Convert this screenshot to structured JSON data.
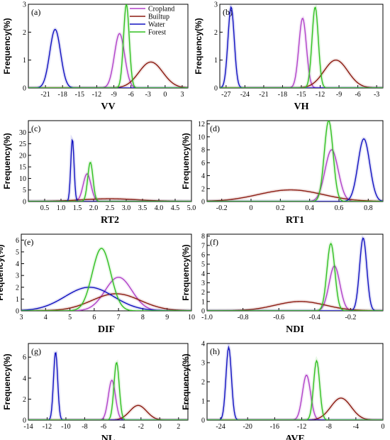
{
  "colors": {
    "Cropland": "#b040c8",
    "Builtup": "#8b1a10",
    "Water": "#1010c0",
    "Forest": "#30c020"
  },
  "legend": [
    "Cropland",
    "Builtup",
    "Water",
    "Forest"
  ],
  "chart_data": [
    {
      "type": "line",
      "panel": "(a)",
      "xlabel": "VV",
      "ylabel": "Frequency(%)",
      "xlim": [
        -24,
        4
      ],
      "ylim": [
        0,
        3
      ],
      "xticks": [
        -21,
        -18,
        -15,
        -12,
        -9,
        -6,
        -3,
        0,
        3
      ],
      "yticks": [
        0,
        1,
        2,
        3
      ],
      "xtick_labels": [
        "-21",
        "-18",
        "-15",
        "-12",
        "-9",
        "-6",
        "-3",
        "0",
        "3"
      ],
      "ytick_labels": [
        "0",
        "1",
        "2",
        "3"
      ],
      "legend_position": "top-right",
      "series": [
        {
          "name": "Cropland",
          "peak": -8.0,
          "height": 1.95,
          "spread": 0.9
        },
        {
          "name": "Builtup",
          "peak": -2.5,
          "height": 0.93,
          "spread": 2.1
        },
        {
          "name": "Water",
          "peak": -19.3,
          "height": 2.1,
          "spread": 0.95
        },
        {
          "name": "Forest",
          "peak": -6.8,
          "height": 3.0,
          "spread": 0.5
        }
      ]
    },
    {
      "type": "line",
      "panel": "(b)",
      "xlabel": "VH",
      "ylabel": "Frequency(%)",
      "xlim": [
        -28,
        -2
      ],
      "ylim": [
        0,
        3
      ],
      "xticks": [
        -27,
        -24,
        -21,
        -18,
        -15,
        -12,
        -9,
        -6,
        -3
      ],
      "yticks": [
        0,
        1,
        2,
        3
      ],
      "xtick_labels": [
        "-27",
        "-24",
        "-21",
        "-18",
        "-15",
        "-12",
        "-9",
        "-6",
        "-3"
      ],
      "ytick_labels": [
        "0",
        "1",
        "2",
        "3"
      ],
      "series": [
        {
          "name": "Cropland",
          "peak": -14.8,
          "height": 2.5,
          "spread": 0.6
        },
        {
          "name": "Builtup",
          "peak": -9.5,
          "height": 1.0,
          "spread": 1.9
        },
        {
          "name": "Water",
          "peak": -26.2,
          "height": 2.9,
          "spread": 0.5
        },
        {
          "name": "Forest",
          "peak": -12.8,
          "height": 2.9,
          "spread": 0.5
        }
      ]
    },
    {
      "type": "line",
      "panel": "(c)",
      "xlabel": "RT2",
      "ylabel": "Frequency(%)",
      "xlim": [
        0,
        5
      ],
      "ylim": [
        0,
        35
      ],
      "xticks": [
        0.5,
        1.0,
        1.5,
        2.0,
        2.5,
        3.0,
        3.5,
        4.0,
        4.5,
        5.0
      ],
      "yticks": [
        0,
        5,
        10,
        15,
        20,
        25,
        30
      ],
      "xtick_labels": [
        "0.5",
        "1.0",
        "1.5",
        "2.0",
        "2.5",
        "3.0",
        "3.5",
        "4.0",
        "4.5",
        "5.0"
      ],
      "ytick_labels": [
        "0",
        "5",
        "10",
        "15",
        "20",
        "25",
        "30"
      ],
      "series": [
        {
          "name": "Cropland",
          "peak": 1.8,
          "height": 12.0,
          "spread": 0.12
        },
        {
          "name": "Builtup",
          "peak": 2.5,
          "height": 1.2,
          "spread": 0.9
        },
        {
          "name": "Water",
          "peak": 1.35,
          "height": 27.0,
          "spread": 0.05
        },
        {
          "name": "Forest",
          "peak": 1.9,
          "height": 17.0,
          "spread": 0.08
        }
      ]
    },
    {
      "type": "line",
      "panel": "(d)",
      "xlabel": "RT1",
      "ylabel": "Frequency(%)",
      "xlim": [
        -0.3,
        0.9
      ],
      "ylim": [
        0,
        12.5
      ],
      "xticks": [
        -0.2,
        0,
        0.2,
        0.4,
        0.6,
        0.8
      ],
      "yticks": [
        0,
        2,
        4,
        6,
        8,
        10,
        12
      ],
      "xtick_labels": [
        "-0.2",
        "0",
        "0.2",
        "0.4",
        "0.6",
        "0.8"
      ],
      "ytick_labels": [
        "0",
        "2",
        "4",
        "6",
        "8",
        "10",
        "12"
      ],
      "series": [
        {
          "name": "Cropland",
          "peak": 0.55,
          "height": 8.0,
          "spread": 0.045
        },
        {
          "name": "Builtup",
          "peak": 0.27,
          "height": 1.8,
          "spread": 0.22
        },
        {
          "name": "Water",
          "peak": 0.77,
          "height": 9.7,
          "spread": 0.04
        },
        {
          "name": "Forest",
          "peak": 0.53,
          "height": 12.5,
          "spread": 0.03
        }
      ]
    },
    {
      "type": "line",
      "panel": "(e)",
      "xlabel": "DIF",
      "ylabel": "Frequency(%)",
      "xlim": [
        3,
        10
      ],
      "ylim": [
        0,
        6.5
      ],
      "xticks": [
        3,
        4,
        5,
        6,
        7,
        8,
        9,
        10
      ],
      "yticks": [
        0,
        1,
        2,
        3,
        4,
        5,
        6
      ],
      "xtick_labels": [
        "3",
        "4",
        "5",
        "6",
        "7",
        "8",
        "9",
        "10"
      ],
      "ytick_labels": [
        "0",
        "1",
        "2",
        "3",
        "4",
        "5",
        "6"
      ],
      "series": [
        {
          "name": "Cropland",
          "peak": 7.0,
          "height": 2.85,
          "spread": 0.55
        },
        {
          "name": "Builtup",
          "peak": 6.9,
          "height": 1.45,
          "spread": 1.0
        },
        {
          "name": "Water",
          "peak": 5.8,
          "height": 2.0,
          "spread": 1.0
        },
        {
          "name": "Forest",
          "peak": 6.3,
          "height": 5.3,
          "spread": 0.38
        }
      ]
    },
    {
      "type": "line",
      "panel": "(f)",
      "xlabel": "NDI",
      "ylabel": "Frequency(%)",
      "xlim": [
        -1.0,
        -0.02
      ],
      "ylim": [
        0,
        8.2
      ],
      "xticks": [
        -1.0,
        -0.8,
        -0.6,
        -0.4,
        -0.2
      ],
      "yticks": [
        0,
        1,
        2,
        3,
        4,
        5,
        6,
        7,
        8
      ],
      "xtick_labels": [
        "-1.0",
        "-0.8",
        "-0.6",
        "-0.4",
        "-0.2"
      ],
      "ytick_labels": [
        "0",
        "1",
        "2",
        "3",
        "4",
        "5",
        "6",
        "7",
        "8"
      ],
      "series": [
        {
          "name": "Cropland",
          "peak": -0.29,
          "height": 4.8,
          "spread": 0.03
        },
        {
          "name": "Builtup",
          "peak": -0.48,
          "height": 1.0,
          "spread": 0.14
        },
        {
          "name": "Water",
          "peak": -0.13,
          "height": 7.8,
          "spread": 0.02
        },
        {
          "name": "Forest",
          "peak": -0.31,
          "height": 7.2,
          "spread": 0.022
        }
      ]
    },
    {
      "type": "line",
      "panel": "(g)",
      "xlabel": "NL",
      "ylabel": "Frequency(%)",
      "xlim": [
        -14,
        3
      ],
      "ylim": [
        0,
        7.3
      ],
      "xticks": [
        -14,
        -12,
        -10,
        -8,
        -6,
        -4,
        -2,
        0,
        2
      ],
      "yticks": [
        0,
        2,
        4,
        6
      ],
      "xtick_labels": [
        "-14",
        "-12",
        "-10",
        "-8",
        "-6",
        "-4",
        "-2",
        "0",
        "2"
      ],
      "ytick_labels": [
        "0",
        "2",
        "4",
        "6"
      ],
      "series": [
        {
          "name": "Cropland",
          "peak": -5.1,
          "height": 3.8,
          "spread": 0.38
        },
        {
          "name": "Builtup",
          "peak": -2.3,
          "height": 1.4,
          "spread": 0.9
        },
        {
          "name": "Water",
          "peak": -11.1,
          "height": 6.5,
          "spread": 0.22
        },
        {
          "name": "Forest",
          "peak": -4.6,
          "height": 5.5,
          "spread": 0.28
        }
      ]
    },
    {
      "type": "line",
      "panel": "(h)",
      "xlabel": "AVE",
      "ylabel": "Frequency(%)",
      "xlim": [
        -26,
        0
      ],
      "ylim": [
        0,
        4
      ],
      "xticks": [
        -24,
        -20,
        -16,
        -12,
        -8,
        -4,
        0
      ],
      "yticks": [
        0,
        1,
        2,
        3,
        4
      ],
      "xtick_labels": [
        "-24",
        "-20",
        "-16",
        "-12",
        "-8",
        "-4",
        "0"
      ],
      "ytick_labels": [
        "0",
        "1",
        "2",
        "3",
        "4"
      ],
      "series": [
        {
          "name": "Cropland",
          "peak": -11.3,
          "height": 2.35,
          "spread": 0.6
        },
        {
          "name": "Builtup",
          "peak": -6.2,
          "height": 1.15,
          "spread": 1.5
        },
        {
          "name": "Water",
          "peak": -22.8,
          "height": 3.8,
          "spread": 0.4
        },
        {
          "name": "Forest",
          "peak": -9.8,
          "height": 3.1,
          "spread": 0.45
        }
      ]
    }
  ]
}
